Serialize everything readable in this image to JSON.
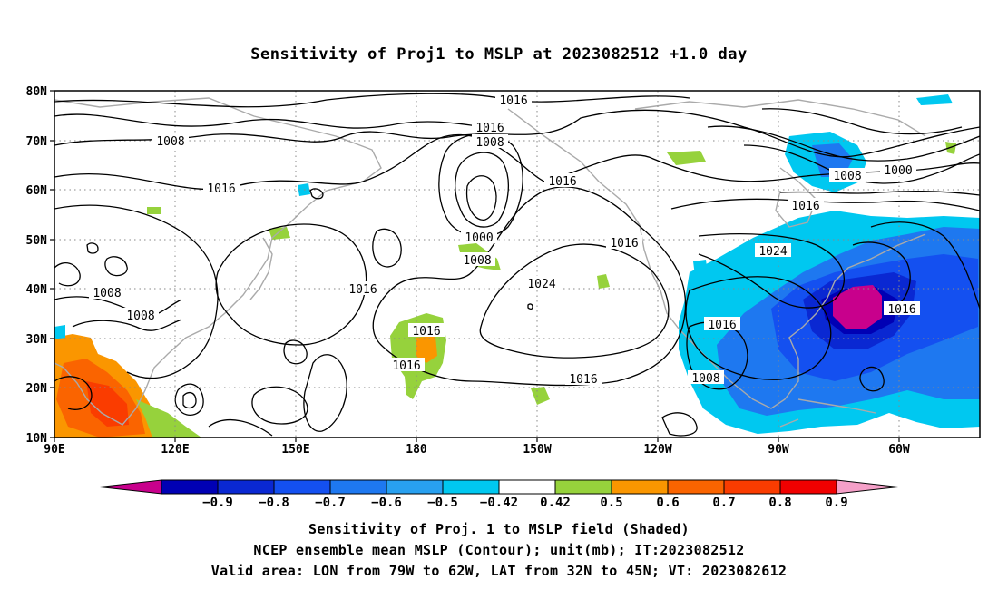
{
  "title": "Sensitivity of Proj1 to MSLP at 2023082512 +1.0 day",
  "map": {
    "lat_labels": [
      "80N",
      "70N",
      "60N",
      "50N",
      "40N",
      "30N",
      "20N",
      "10N"
    ],
    "lon_labels": [
      "90E",
      "120E",
      "150E",
      "180",
      "150W",
      "120W",
      "90W",
      "60W"
    ],
    "contour_labels": [
      {
        "text": "1016"
      },
      {
        "text": "1008"
      },
      {
        "text": "1016"
      },
      {
        "text": "1008"
      },
      {
        "text": "1016"
      },
      {
        "text": "1000"
      },
      {
        "text": "1008"
      },
      {
        "text": "1016"
      },
      {
        "text": "1016"
      },
      {
        "text": "1024"
      },
      {
        "text": "1016"
      },
      {
        "text": "1016"
      },
      {
        "text": "1008"
      },
      {
        "text": "1008"
      },
      {
        "text": "1016"
      },
      {
        "text": "1016"
      },
      {
        "text": "1016"
      },
      {
        "text": "1008"
      },
      {
        "text": "1000"
      },
      {
        "text": "1024"
      },
      {
        "text": "1016"
      },
      {
        "text": "1016"
      },
      {
        "text": "1008"
      },
      {
        "text": "1016"
      }
    ]
  },
  "colorbar": {
    "labels": [
      "-0.9",
      "-0.8",
      "-0.7",
      "-0.6",
      "-0.5",
      "-0.42",
      "0.42",
      "0.5",
      "0.6",
      "0.7",
      "0.8",
      "0.9"
    ],
    "colors": [
      "#c8008c",
      "#0000b4",
      "#0a28d2",
      "#1450f0",
      "#1e78f0",
      "#28a0f0",
      "#00c8f0",
      "#ffffff",
      "#96d23c",
      "#fa9600",
      "#fa6400",
      "#fa3c00",
      "#f00000",
      "#f5a0c8"
    ]
  },
  "captions": [
    "Sensitivity of Proj. 1 to MSLP field (Shaded)",
    "NCEP ensemble mean MSLP (Contour); unit(mb); IT:2023082512",
    "Valid area: LON from 79W to 62W, LAT from 32N to 45N; VT: 2023082612"
  ]
}
